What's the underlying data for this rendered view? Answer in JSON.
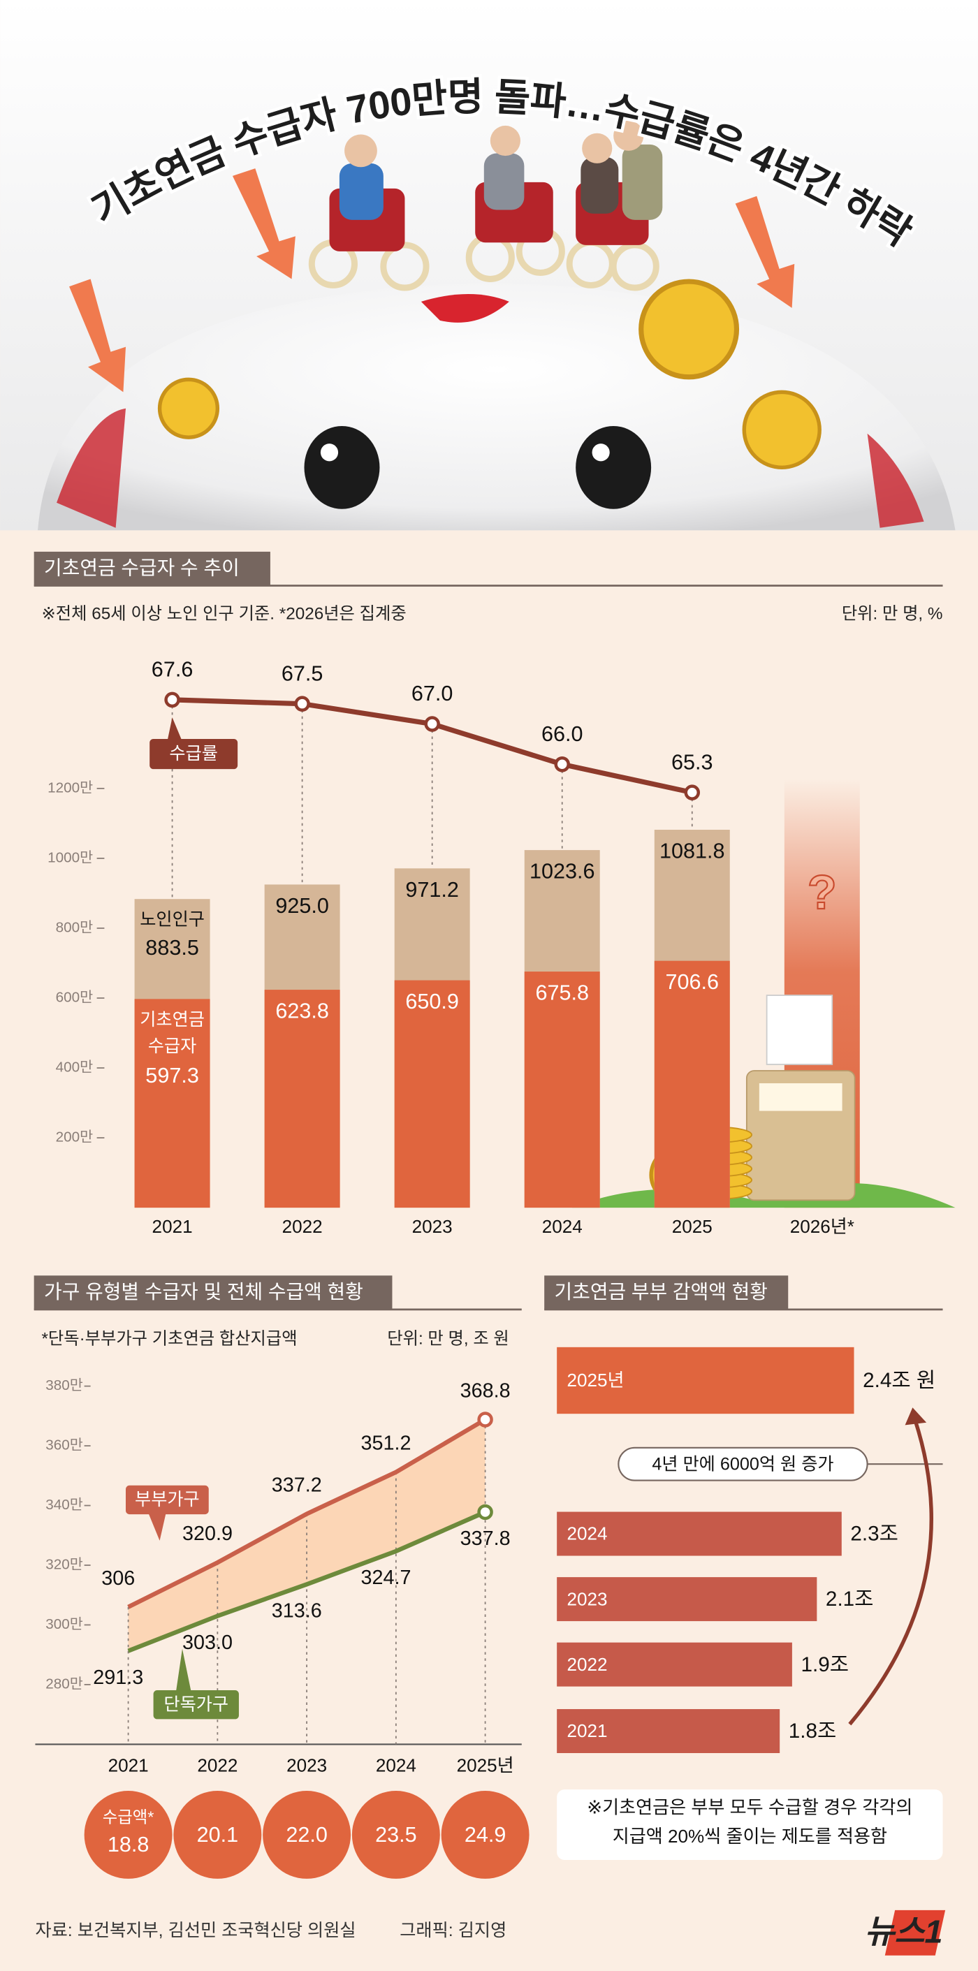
{
  "header": {
    "title": "기초연금 수급자 700만명 돌파…수급률은 4년간 하락"
  },
  "chart_data": [
    {
      "type": "bar-line",
      "title": "기초연금 수급자 수 추이",
      "note": "※전체 65세 이상 노인 인구 기준.  *2026년은 집계중",
      "unit": "단위: 만 명, %",
      "categories": [
        "2021",
        "2022",
        "2023",
        "2024",
        "2025",
        "2026년*"
      ],
      "series": [
        {
          "name": "노인인구",
          "color": "#d5b697",
          "values": [
            883.5,
            925.0,
            971.2,
            1023.6,
            1081.8,
            null
          ],
          "value_labels": [
            "883.5",
            "925.0",
            "971.2",
            "1023.6",
            "1081.8",
            null
          ]
        },
        {
          "name": "기초연금 수급자",
          "color": "#e0653e",
          "values": [
            597.3,
            623.8,
            650.9,
            675.8,
            706.6,
            null
          ],
          "value_labels": [
            "597.3",
            "623.8",
            "650.9",
            "675.8",
            "706.6",
            null
          ]
        },
        {
          "name": "수급률",
          "color": "#8e3b2c",
          "axis": "y2",
          "values": [
            67.6,
            67.5,
            67.0,
            66.0,
            65.3,
            null
          ],
          "value_labels": [
            "67.6",
            "67.5",
            "67.0",
            "66.0",
            "65.3",
            null
          ]
        }
      ],
      "ylim": [
        0,
        1500
      ],
      "yticks": [
        {
          "value": 200,
          "label": "200만"
        },
        {
          "value": 400,
          "label": "400만"
        },
        {
          "value": 600,
          "label": "600만"
        },
        {
          "value": 800,
          "label": "800만"
        },
        {
          "value": 1000,
          "label": "1000만"
        },
        {
          "value": 1200,
          "label": "1200만"
        }
      ],
      "y2lim": [
        55,
        68
      ],
      "annotation": "?"
    },
    {
      "type": "line",
      "title": "가구 유형별 수급자 및 전체 수급액 현황",
      "note": "*단독·부부가구 기초연금 합산지급액",
      "unit": "단위: 만 명, 조 원",
      "categories": [
        "2021",
        "2022",
        "2023",
        "2024",
        "2025년"
      ],
      "series": [
        {
          "name": "부부가구",
          "color": "#c9604a",
          "values": [
            306,
            320.9,
            337.2,
            351.2,
            368.8
          ],
          "value_labels": [
            "306",
            "320.9",
            "337.2",
            "351.2",
            "368.8"
          ]
        },
        {
          "name": "단독가구",
          "color": "#6d8a3b",
          "values": [
            291.3,
            303.0,
            313.6,
            324.7,
            337.8
          ],
          "value_labels": [
            "291.3",
            "303.0",
            "313.6",
            "324.7",
            "337.8"
          ]
        }
      ],
      "ylim": [
        260,
        380
      ],
      "yticks": [
        {
          "value": 280,
          "label": "280만"
        },
        {
          "value": 300,
          "label": "300만"
        },
        {
          "value": 320,
          "label": "320만"
        },
        {
          "value": 340,
          "label": "340만"
        },
        {
          "value": 360,
          "label": "360만"
        },
        {
          "value": 380,
          "label": "380만"
        }
      ],
      "area_color": "#fcd6b6",
      "totals": {
        "name": "수급액*",
        "color": "#e0653e",
        "values": [
          18.8,
          20.1,
          22.0,
          23.5,
          24.9
        ],
        "value_labels": [
          "18.8",
          "20.1",
          "22.0",
          "23.5",
          "24.9"
        ]
      }
    },
    {
      "type": "hbar",
      "title": "기초연금 부부 감액액 현황",
      "categories": [
        "2025년",
        "2024",
        "2023",
        "2022",
        "2021"
      ],
      "values": [
        2.4,
        2.3,
        2.1,
        1.9,
        1.8
      ],
      "value_labels": [
        "2.4조 원",
        "2.3조",
        "2.1조",
        "1.9조",
        "1.8조"
      ],
      "colors": [
        "#e0653e",
        "#c65a4a",
        "#c65a4a",
        "#c65a4a",
        "#c65a4a"
      ],
      "xlim": [
        0,
        3
      ],
      "annotation": "4년 만에 6000억 원 증가",
      "note": "※기초연금은 부부 모두 수급할 경우 각각의 지급액 20%씩 줄이는 제도를 적용함"
    }
  ],
  "footer": {
    "source": "자료: 보건복지부, 김선민 조국혁신당 의원실",
    "credit": "그래픽: 김지영",
    "logo": "뉴스1"
  }
}
